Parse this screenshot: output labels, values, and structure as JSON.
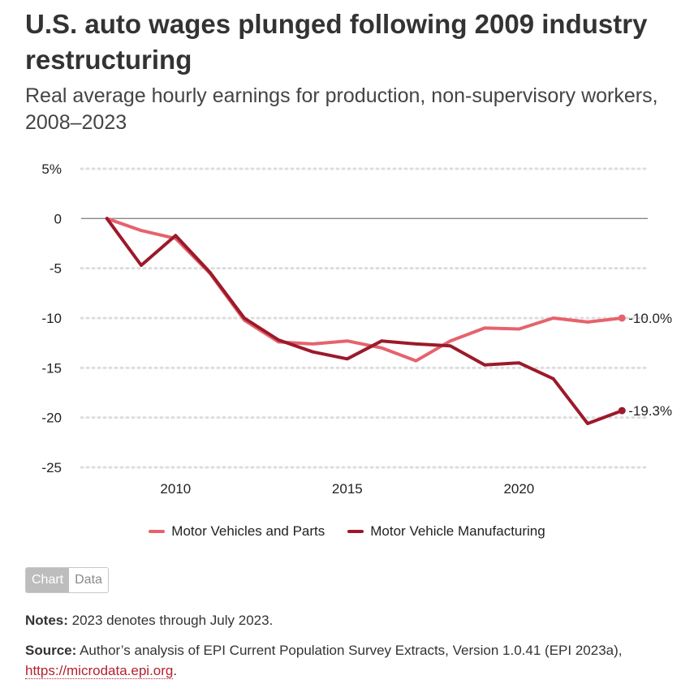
{
  "title": "U.S. auto wages plunged following 2009 industry restructuring",
  "subtitle": "Real average hourly earnings for production, non-supervisory workers, 2008–2023",
  "legend": {
    "series1": "Motor Vehicles and Parts",
    "series2": "Motor Vehicle Manufacturing"
  },
  "toggle": {
    "chart": "Chart",
    "data": "Data"
  },
  "notes": {
    "label": "Notes:",
    "text": "2023 denotes through July 2023."
  },
  "source": {
    "label": "Source:",
    "text": "Author’s analysis of EPI Current Population Survey Extracts, Version 1.0.41 (EPI 2023a),",
    "link": "https://microdata.epi.org",
    "trail": "."
  },
  "colors": {
    "series1": "#e5636d",
    "series2": "#9b1a2a",
    "grid": "#dddddd",
    "zero": "#888888"
  },
  "chart_data": {
    "type": "line",
    "x": [
      2008,
      2009,
      2010,
      2011,
      2012,
      2013,
      2014,
      2015,
      2016,
      2017,
      2018,
      2019,
      2020,
      2021,
      2022,
      2023
    ],
    "series": [
      {
        "name": "Motor Vehicles and Parts",
        "values": [
          0,
          -1.2,
          -2.0,
          -5.5,
          -10.2,
          -12.4,
          -12.6,
          -12.3,
          -13.0,
          -14.3,
          -12.3,
          -11.0,
          -11.1,
          -10.0,
          -10.4,
          -10.0
        ],
        "end_label": "-10.0%"
      },
      {
        "name": "Motor Vehicle Manufacturing",
        "values": [
          0,
          -4.7,
          -1.7,
          -5.4,
          -10.0,
          -12.2,
          -13.4,
          -14.1,
          -12.3,
          -12.6,
          -12.8,
          -14.7,
          -14.5,
          -16.1,
          -20.6,
          -19.3
        ],
        "end_label": "-19.3%"
      }
    ],
    "y_ticks": [
      "5%",
      "0",
      "-5",
      "-10",
      "-15",
      "-20",
      "-25"
    ],
    "x_ticks": [
      "2010",
      "2015",
      "2020"
    ],
    "ylim": [
      -25,
      5
    ],
    "xlim": [
      2007.25,
      2023.75
    ],
    "grid": true,
    "legend_position": "bottom"
  }
}
